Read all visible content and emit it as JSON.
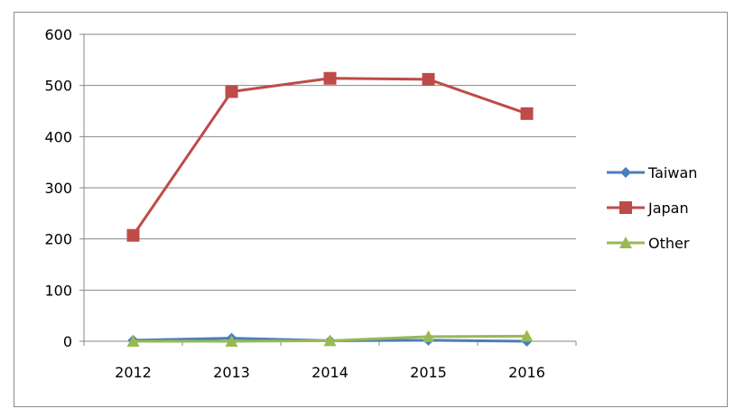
{
  "chart_data": {
    "type": "line",
    "title": "",
    "xlabel": "",
    "ylabel": "",
    "categories": [
      "2012",
      "2013",
      "2014",
      "2015",
      "2016"
    ],
    "ylim": [
      0,
      600
    ],
    "yticks": [
      "0",
      "100",
      "200",
      "300",
      "400",
      "500",
      "600"
    ],
    "grid": true,
    "legend_position": "right",
    "series": [
      {
        "name": "Taiwan",
        "values": [
          2,
          6,
          1,
          2,
          0
        ],
        "color": "#4a7ebb",
        "marker": "diamond"
      },
      {
        "name": "Japan",
        "values": [
          207,
          488,
          514,
          512,
          445
        ],
        "color": "#be4b48",
        "marker": "square"
      },
      {
        "name": "Other",
        "values": [
          0,
          0,
          1,
          9,
          10
        ],
        "color": "#98b954",
        "marker": "triangle"
      }
    ]
  }
}
